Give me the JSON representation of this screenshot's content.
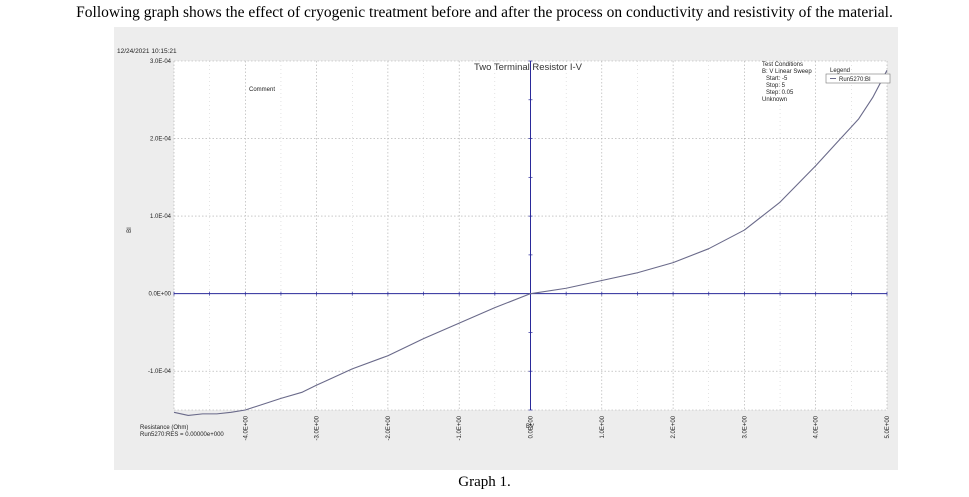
{
  "intro_text": "Following graph shows the effect of cryogenic treatment before and after the process on conductivity and resistivity of the material.",
  "caption": "Graph 1.",
  "timestamp": "12/24/2021 10:15:21",
  "comment_label": "Comment",
  "resistance_label": "Resistance (Ohm)",
  "resistance_value": "Run5270:RES = 0.00000e+000",
  "test_conditions": {
    "heading": "Test Conditions",
    "lines": [
      "B: V Linear Sweep",
      "Start: -5",
      "Stop: 5",
      "Step: 0.05",
      "Unknown"
    ]
  },
  "colors": {
    "curve": "#6a6a8a",
    "axis": "#2a2a9a",
    "grid": "#a8a8a8",
    "panel": "#ededed",
    "plot_bg": "#ffffff"
  },
  "chart_data": {
    "type": "line",
    "title": "Two Terminal Resistor I-V",
    "xlabel": "BV",
    "ylabel": "BI",
    "xlim": [
      -5,
      5
    ],
    "ylim": [
      -0.00015,
      0.0003
    ],
    "grid": true,
    "legend_position": "top-right",
    "legend_title": "Legend",
    "x_tick_labels": [
      "-4.0E+00",
      "-3.0E+00",
      "-2.0E+00",
      "-1.0E+00",
      "0.0E+00",
      "1.0E+00",
      "2.0E+00",
      "3.0E+00",
      "4.0E+00",
      "5.0E+00"
    ],
    "x_tick_values": [
      -4,
      -3,
      -2,
      -1,
      0,
      1,
      2,
      3,
      4,
      5
    ],
    "y_tick_labels": [
      "3.0E-04",
      "2.0E-04",
      "1.0E-04",
      "0.0E+00",
      "-1.0E-04"
    ],
    "y_tick_values": [
      0.0003,
      0.0002,
      0.0001,
      0,
      -0.0001
    ],
    "series": [
      {
        "name": "Run5270:BI",
        "x": [
          -5,
          -4.8,
          -4.6,
          -4.4,
          -4.2,
          -4.0,
          -3.8,
          -3.5,
          -3.2,
          -3.0,
          -2.5,
          -2.0,
          -1.5,
          -1.0,
          -0.5,
          0,
          0.5,
          1.0,
          1.5,
          2.0,
          2.5,
          3.0,
          3.5,
          4.0,
          4.3,
          4.6,
          4.8,
          5.0
        ],
        "y": [
          -0.000153,
          -0.000157,
          -0.000155,
          -0.000155,
          -0.000153,
          -0.00015,
          -0.000144,
          -0.000135,
          -0.000127,
          -0.000118,
          -9.7e-05,
          -8e-05,
          -5.8e-05,
          -3.8e-05,
          -1.8e-05,
          0,
          7e-06,
          1.7e-05,
          2.7e-05,
          4e-05,
          5.8e-05,
          8.2e-05,
          0.000118,
          0.000165,
          0.000195,
          0.000225,
          0.000253,
          0.000288
        ]
      }
    ]
  }
}
